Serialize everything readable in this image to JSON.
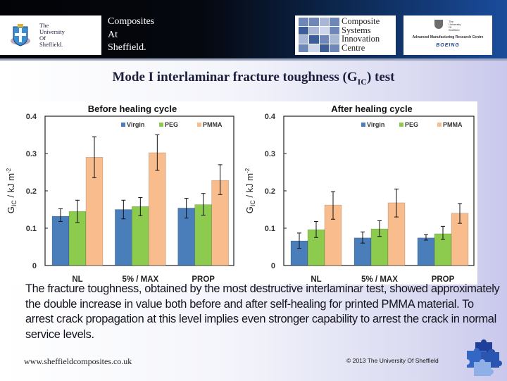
{
  "header": {
    "university_logo_text": "The\nUniversity\nOf\nSheffield.",
    "title": "Composites\nAt\nSheffield.",
    "csic_logo_text": "Composite\nSystems\nInnovation\nCentre",
    "amrc_small_text": "The\nUniversity\nOf\nSheffield",
    "amrc_text": "Advanced Manufacturing Research Centre",
    "boeing_text": "BOEING"
  },
  "slide": {
    "title_main": "Mode I interlaminar fracture toughness (G",
    "title_sub": "IC",
    "title_end": ") test",
    "body": "The fracture toughness, obtained by the most destructive interlaminar test, showed approximately the double increase in value both before and after self-healing for printed PMMA material. To arrest crack propagation at this level implies even stronger capability to arrest the crack in normal service levels."
  },
  "footer": {
    "url": "www.sheffieldcomposites.co.uk",
    "copyright": "© 2013 The University Of Sheffield"
  },
  "colors": {
    "virgin": "#4a7ebb",
    "peg": "#8ccb4e",
    "pmma": "#f9bd8d"
  },
  "chart_data": [
    {
      "type": "bar",
      "title": "Before healing cycle",
      "xlabel": "",
      "ylabel": "G_IC / kJ m^-2",
      "ylim": [
        0,
        0.4
      ],
      "yticks": [
        "0",
        "0.1",
        "0.2",
        "0.3",
        "0.4"
      ],
      "legend_position": "top-right",
      "categories": [
        "NL",
        "5% / MAX",
        "PROP"
      ],
      "series": [
        {
          "name": "Virgin",
          "values": [
            0.132,
            0.15,
            0.154
          ],
          "err_low": [
            0.118,
            0.125,
            0.127
          ],
          "err_high": [
            0.152,
            0.175,
            0.18
          ]
        },
        {
          "name": "PEG",
          "values": [
            0.145,
            0.158,
            0.163
          ],
          "err_low": [
            0.115,
            0.133,
            0.135
          ],
          "err_high": [
            0.175,
            0.182,
            0.193
          ]
        },
        {
          "name": "PMMA",
          "values": [
            0.29,
            0.302,
            0.228
          ],
          "err_low": [
            0.235,
            0.255,
            0.19
          ],
          "err_high": [
            0.345,
            0.35,
            0.27
          ]
        }
      ]
    },
    {
      "type": "bar",
      "title": "After healing cycle",
      "xlabel": "",
      "ylabel": "G_IC / kJ m^-2",
      "ylim": [
        0,
        0.4
      ],
      "yticks": [
        "0",
        "0.1",
        "0.2",
        "0.3",
        "0.4"
      ],
      "legend_position": "top-right",
      "categories": [
        "NL",
        "5% / MAX",
        "PROP"
      ],
      "series": [
        {
          "name": "Virgin",
          "values": [
            0.066,
            0.074,
            0.074
          ],
          "err_low": [
            0.046,
            0.06,
            0.068
          ],
          "err_high": [
            0.087,
            0.09,
            0.083
          ]
        },
        {
          "name": "PEG",
          "values": [
            0.096,
            0.098,
            0.085
          ],
          "err_low": [
            0.075,
            0.078,
            0.07
          ],
          "err_high": [
            0.118,
            0.12,
            0.105
          ]
        },
        {
          "name": "PMMA",
          "values": [
            0.162,
            0.168,
            0.14
          ],
          "err_low": [
            0.124,
            0.13,
            0.113
          ],
          "err_high": [
            0.198,
            0.205,
            0.166
          ]
        }
      ]
    }
  ]
}
